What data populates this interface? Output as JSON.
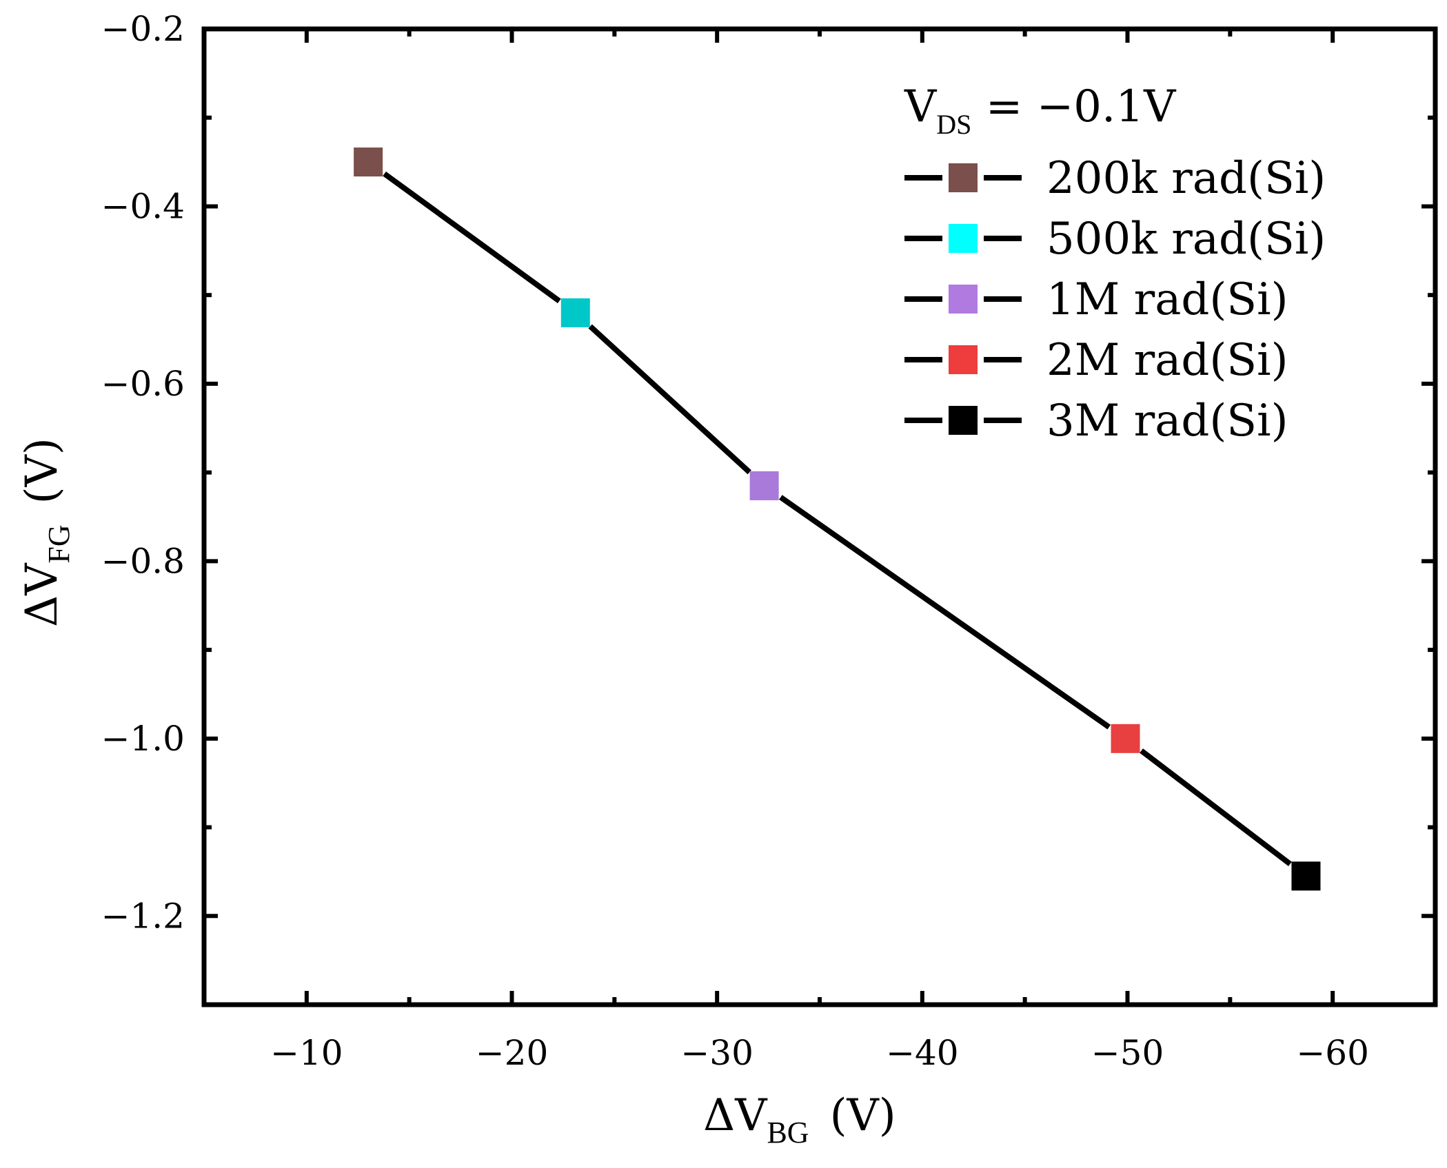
{
  "chart_data": {
    "type": "line",
    "xlabel": {
      "prefix": "ΔV",
      "sub": "BG",
      "unit": "(V)"
    },
    "ylabel": {
      "prefix": "ΔV",
      "sub": "FG",
      "unit": "(V)"
    },
    "xlim": [
      -5,
      -65
    ],
    "ylim": [
      -1.3,
      -0.2
    ],
    "x_ticks": [
      -10,
      -20,
      -30,
      -40,
      -50,
      -60
    ],
    "x_tick_labels": [
      "−10",
      "−20",
      "−30",
      "−40",
      "−50",
      "−60"
    ],
    "y_ticks": [
      -0.2,
      -0.4,
      -0.6,
      -0.8,
      -1.0,
      -1.2
    ],
    "y_tick_labels": [
      "−0.2",
      "−0.4",
      "−0.6",
      "−0.8",
      "−1.0",
      "−1.2"
    ],
    "legend_title": {
      "prefix": "V",
      "sub": "DS",
      "suffix": " = −0.1V"
    },
    "legend_position": "top-right",
    "line_color": "#000000",
    "points": [
      {
        "name": "200k rad(Si)",
        "x": -13.0,
        "y": -0.35,
        "color": "#7b4f4b"
      },
      {
        "name": "500k rad(Si)",
        "x": -23.1,
        "y": -0.52,
        "color": "#00c8c8"
      },
      {
        "name": "1M rad(Si)",
        "x": -32.3,
        "y": -0.715,
        "color": "#a97ad9"
      },
      {
        "name": "2M rad(Si)",
        "x": -49.9,
        "y": -1.0,
        "color": "#e84040"
      },
      {
        "name": "3M rad(Si)",
        "x": -58.7,
        "y": -1.155,
        "color": "#000000"
      }
    ],
    "legend_entries": [
      {
        "label": "200k rad(Si)",
        "color": "#7b4f4b"
      },
      {
        "label": "500k rad(Si)",
        "color": "#00ffff"
      },
      {
        "label": "1M rad(Si)",
        "color": "#b07ae0"
      },
      {
        "label": "2M rad(Si)",
        "color": "#ef3c3c"
      },
      {
        "label": "3M rad(Si)",
        "color": "#000000"
      }
    ]
  }
}
